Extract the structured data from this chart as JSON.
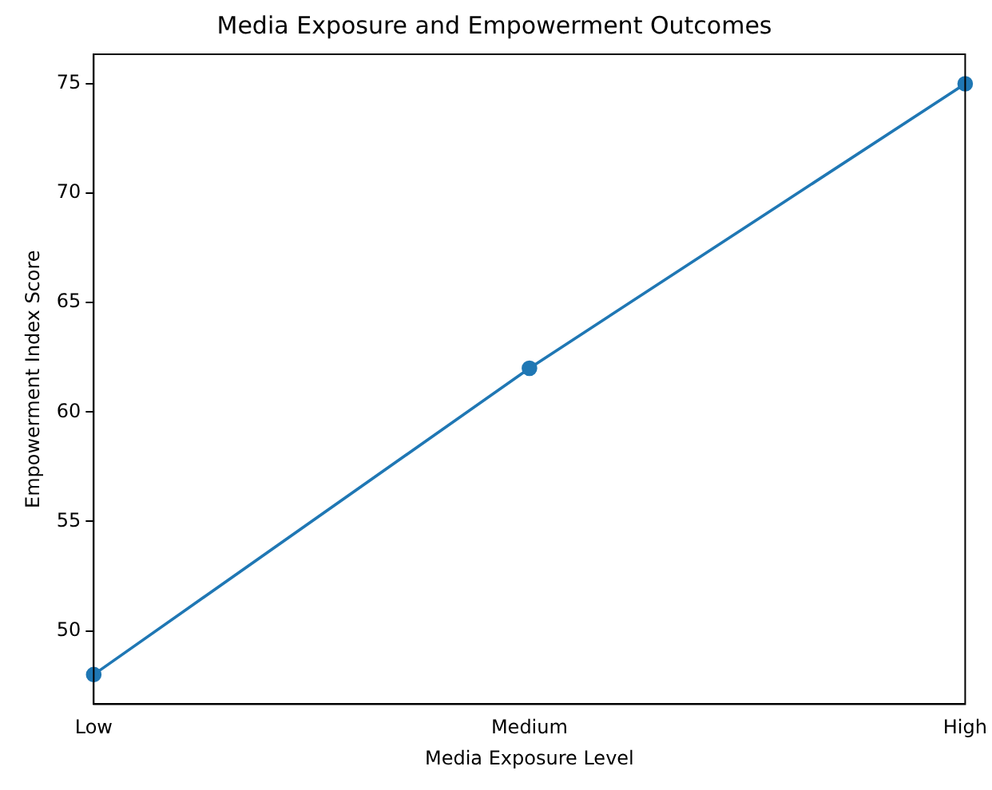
{
  "chart_data": {
    "type": "line",
    "title": "Media Exposure and Empowerment Outcomes",
    "xlabel": "Media Exposure Level",
    "ylabel": "Empowerment Index Score",
    "categories": [
      "Low",
      "Medium",
      "High"
    ],
    "series": [
      {
        "color": "#1f77b4",
        "values": [
          48,
          62,
          75
        ]
      }
    ],
    "ylim": [
      46.65,
      76.35
    ],
    "yticks": [
      50,
      55,
      60,
      65,
      70,
      75
    ],
    "grid": false,
    "legend": false,
    "marker": "circle",
    "line_style": "solid"
  }
}
